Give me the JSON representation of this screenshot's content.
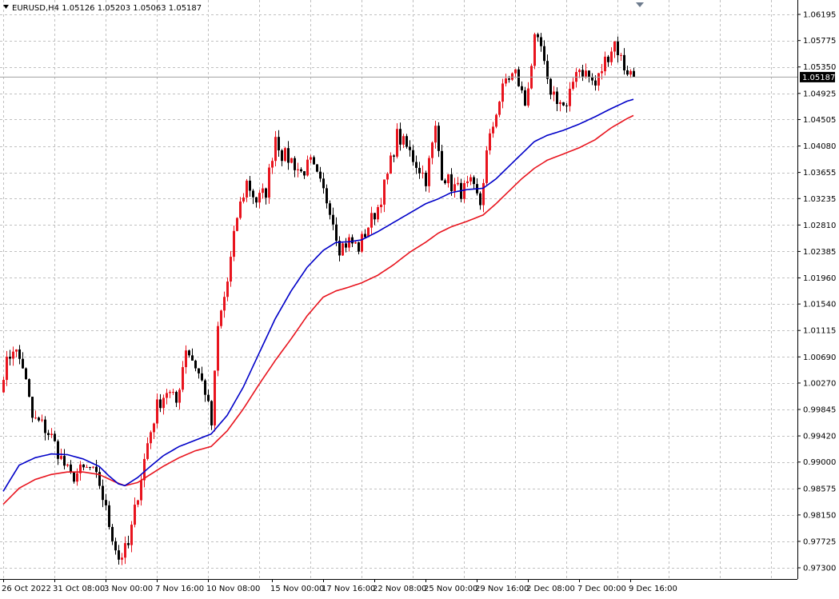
{
  "header": {
    "symbol": "EURUSD,H4",
    "open": "1.05126",
    "high": "1.05203",
    "low": "1.05063",
    "close": "1.05187"
  },
  "colors": {
    "background": "#ffffff",
    "grid": "#c0c0c0",
    "axis": "#000000",
    "bull_candle": "#e8141e",
    "bear_candle": "#000000",
    "ma_fast": "#0000c8",
    "ma_slow": "#e8141e",
    "price_tag_bg": "#000000",
    "price_tag_text": "#ffffff",
    "price_line": "#a0a0a0",
    "scroll_marker": "#6c7a8c"
  },
  "chart_data": {
    "type": "candlestick",
    "title": "EURUSD,H4",
    "ylim": [
      0.969,
      1.0643
    ],
    "grid": true,
    "current_price": "1.05187",
    "y_ticks": [
      "1.06195",
      "1.05775",
      "1.05350",
      "1.04925",
      "1.04505",
      "1.04080",
      "1.03655",
      "1.03235",
      "1.02810",
      "1.02385",
      "1.01960",
      "1.01540",
      "1.01115",
      "1.00690",
      "1.00270",
      "0.99845",
      "0.99420",
      "0.99000",
      "0.98575",
      "0.98150",
      "0.97725",
      "0.97300"
    ],
    "x_ticks": [
      "26 Oct 2022",
      "31 Oct 08:00",
      "3 Nov 00:00",
      "7 Nov 16:00",
      "10 Nov 08:00",
      "15 Nov 00:00",
      "17 Nov 16:00",
      "22 Nov 08:00",
      "25 Nov 00:00",
      "29 Nov 16:00",
      "2 Dec 08:00",
      "7 Dec 00:00",
      "9 Dec 16:00"
    ],
    "x_tick_index": [
      0,
      16,
      32,
      48,
      64,
      84,
      100,
      116,
      132,
      148,
      164,
      180,
      196
    ],
    "anchors": [
      [
        0,
        1.0045
      ],
      [
        3,
        1.0085
      ],
      [
        6,
        1.0055
      ],
      [
        9,
        0.997
      ],
      [
        12,
        0.996
      ],
      [
        15,
        0.994
      ],
      [
        18,
        0.9905
      ],
      [
        21,
        0.9875
      ],
      [
        24,
        0.9885
      ],
      [
        27,
        0.989
      ],
      [
        30,
        0.9865
      ],
      [
        33,
        0.98
      ],
      [
        36,
        0.9745
      ],
      [
        39,
        0.9765
      ],
      [
        42,
        0.985
      ],
      [
        45,
        0.993
      ],
      [
        48,
        0.999
      ],
      [
        51,
        1.0015
      ],
      [
        54,
        0.9995
      ],
      [
        57,
        1.0085
      ],
      [
        60,
        1.0055
      ],
      [
        63,
        1.0015
      ],
      [
        65,
        0.996
      ],
      [
        67,
        1.0115
      ],
      [
        70,
        1.019
      ],
      [
        73,
        1.0295
      ],
      [
        76,
        1.035
      ],
      [
        79,
        1.032
      ],
      [
        82,
        1.0335
      ],
      [
        85,
        1.0425
      ],
      [
        87,
        1.0395
      ],
      [
        90,
        1.0385
      ],
      [
        93,
        1.0365
      ],
      [
        96,
        1.038
      ],
      [
        99,
        1.0345
      ],
      [
        102,
        1.031
      ],
      [
        105,
        1.0245
      ],
      [
        108,
        1.0255
      ],
      [
        111,
        1.0245
      ],
      [
        114,
        1.028
      ],
      [
        117,
        1.031
      ],
      [
        120,
        1.036
      ],
      [
        123,
        1.0425
      ],
      [
        126,
        1.0405
      ],
      [
        129,
        1.038
      ],
      [
        132,
        1.0355
      ],
      [
        135,
        1.0435
      ],
      [
        137,
        1.0365
      ],
      [
        140,
        1.0345
      ],
      [
        143,
        1.0335
      ],
      [
        146,
        1.0345
      ],
      [
        149,
        1.0315
      ],
      [
        151,
        1.0395
      ],
      [
        154,
        1.0465
      ],
      [
        157,
        1.0515
      ],
      [
        160,
        1.0525
      ],
      [
        163,
        1.0475
      ],
      [
        166,
        1.0575
      ],
      [
        168,
        1.0565
      ],
      [
        170,
        1.0505
      ],
      [
        173,
        1.0485
      ],
      [
        176,
        1.0465
      ],
      [
        179,
        1.0535
      ],
      [
        182,
        1.0525
      ],
      [
        185,
        1.0505
      ],
      [
        188,
        1.0545
      ],
      [
        191,
        1.0575
      ],
      [
        194,
        1.0535
      ],
      [
        197,
        1.0519
      ]
    ],
    "ma_fast_anchors": [
      [
        0,
        0.9853
      ],
      [
        5,
        0.9895
      ],
      [
        10,
        0.9907
      ],
      [
        15,
        0.9913
      ],
      [
        20,
        0.9912
      ],
      [
        25,
        0.9905
      ],
      [
        30,
        0.9893
      ],
      [
        33,
        0.9878
      ],
      [
        36,
        0.9865
      ],
      [
        38,
        0.9862
      ],
      [
        42,
        0.9875
      ],
      [
        46,
        0.9893
      ],
      [
        50,
        0.991
      ],
      [
        55,
        0.9925
      ],
      [
        60,
        0.9935
      ],
      [
        65,
        0.9945
      ],
      [
        70,
        0.9975
      ],
      [
        75,
        1.002
      ],
      [
        80,
        1.0075
      ],
      [
        85,
        1.013
      ],
      [
        90,
        1.0175
      ],
      [
        95,
        1.0213
      ],
      [
        100,
        1.024
      ],
      [
        104,
        1.0253
      ],
      [
        108,
        1.0254
      ],
      [
        112,
        1.0257
      ],
      [
        117,
        1.027
      ],
      [
        122,
        1.0285
      ],
      [
        127,
        1.03
      ],
      [
        132,
        1.0315
      ],
      [
        136,
        1.0323
      ],
      [
        140,
        1.0333
      ],
      [
        145,
        1.0338
      ],
      [
        150,
        1.034
      ],
      [
        154,
        1.0355
      ],
      [
        158,
        1.0375
      ],
      [
        162,
        1.0395
      ],
      [
        166,
        1.0415
      ],
      [
        170,
        1.0425
      ],
      [
        175,
        1.0433
      ],
      [
        180,
        1.0443
      ],
      [
        185,
        1.0455
      ],
      [
        190,
        1.0468
      ],
      [
        195,
        1.048
      ],
      [
        197,
        1.0483
      ]
    ],
    "ma_slow_anchors": [
      [
        0,
        0.9832
      ],
      [
        5,
        0.9858
      ],
      [
        10,
        0.9872
      ],
      [
        15,
        0.988
      ],
      [
        20,
        0.9884
      ],
      [
        25,
        0.9884
      ],
      [
        30,
        0.988
      ],
      [
        35,
        0.9868
      ],
      [
        38,
        0.9862
      ],
      [
        42,
        0.9867
      ],
      [
        46,
        0.988
      ],
      [
        50,
        0.9893
      ],
      [
        55,
        0.9907
      ],
      [
        60,
        0.9918
      ],
      [
        65,
        0.9925
      ],
      [
        70,
        0.995
      ],
      [
        75,
        0.9985
      ],
      [
        80,
        1.0025
      ],
      [
        85,
        1.0063
      ],
      [
        90,
        1.0098
      ],
      [
        95,
        1.0135
      ],
      [
        100,
        1.0165
      ],
      [
        104,
        1.0175
      ],
      [
        108,
        1.0181
      ],
      [
        112,
        1.0188
      ],
      [
        117,
        1.02
      ],
      [
        122,
        1.0217
      ],
      [
        127,
        1.0237
      ],
      [
        132,
        1.0253
      ],
      [
        136,
        1.0268
      ],
      [
        140,
        1.0278
      ],
      [
        145,
        1.0287
      ],
      [
        150,
        1.0297
      ],
      [
        154,
        1.0315
      ],
      [
        158,
        1.0335
      ],
      [
        162,
        1.0355
      ],
      [
        166,
        1.0372
      ],
      [
        170,
        1.0385
      ],
      [
        175,
        1.0395
      ],
      [
        180,
        1.0405
      ],
      [
        185,
        1.0418
      ],
      [
        190,
        1.0437
      ],
      [
        195,
        1.0452
      ],
      [
        197,
        1.0457
      ]
    ]
  }
}
